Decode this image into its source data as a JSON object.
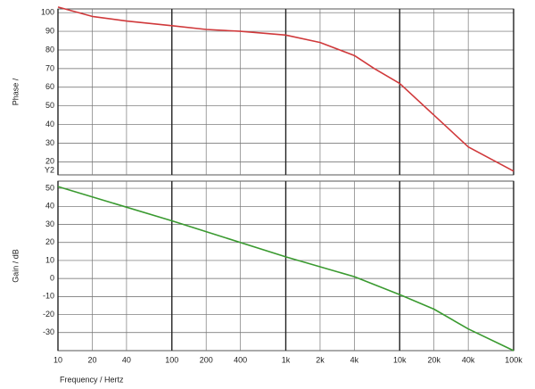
{
  "chart_data": [
    {
      "type": "line",
      "ylabel": "Phase /",
      "annotation": "Y2",
      "xscale": "log",
      "xlim": [
        10,
        100000
      ],
      "ylim": [
        13,
        102
      ],
      "yticks": [
        20,
        30,
        40,
        50,
        60,
        70,
        80,
        90,
        100
      ],
      "grid": true,
      "x": [
        10,
        20,
        40,
        100,
        200,
        400,
        1000,
        2000,
        4000,
        6000,
        10000,
        20000,
        40000,
        100000
      ],
      "series": [
        {
          "color": "#d0393b",
          "values": [
            103,
            98,
            95.5,
            93,
            91,
            90,
            88,
            84,
            77,
            70,
            62,
            45,
            28,
            15
          ]
        }
      ]
    },
    {
      "type": "line",
      "ylabel": "Gain / dB",
      "xlabel": "Frequency / Hertz",
      "xscale": "log",
      "xlim": [
        10,
        100000
      ],
      "ylim": [
        -40,
        54
      ],
      "yticks": [
        -30,
        -20,
        -10,
        0,
        10,
        20,
        30,
        40,
        50
      ],
      "grid": true,
      "xticks": [
        10,
        20,
        40,
        100,
        200,
        400,
        {
          "value": 1000,
          "label": "1k"
        },
        {
          "value": 2000,
          "label": "2k"
        },
        {
          "value": 4000,
          "label": "4k"
        },
        {
          "value": 10000,
          "label": "10k"
        },
        {
          "value": 20000,
          "label": "20k"
        },
        {
          "value": 40000,
          "label": "40k"
        },
        {
          "value": 100000,
          "label": "100k"
        }
      ],
      "x": [
        10,
        100,
        1000,
        4000,
        10000,
        20000,
        40000,
        100000
      ],
      "series": [
        {
          "color": "#3a9a30",
          "values": [
            51,
            32,
            12,
            1,
            -9,
            -17,
            -28,
            -40
          ]
        }
      ]
    }
  ]
}
